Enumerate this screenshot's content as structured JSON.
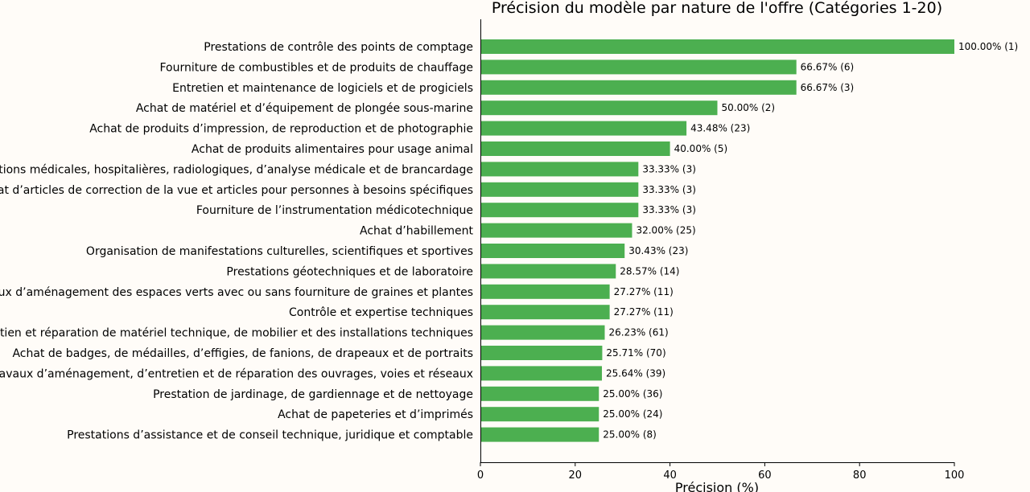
{
  "chart_data": {
    "type": "bar",
    "orientation": "horizontal",
    "title": "Précision du modèle par nature de l'offre (Catégories 1-20)",
    "xlabel": "Précision (%)",
    "ylabel": "",
    "xlim": [
      0,
      100
    ],
    "xticks": [
      "0",
      "20",
      "40",
      "60",
      "80",
      "100"
    ],
    "bar_color": "#4caf50",
    "grid": false,
    "categories": [
      "Prestations de contrôle des points de comptage",
      "Fourniture de combustibles et de produits de chauffage",
      "Entretien et maintenance de logiciels et de progiciels",
      "Achat de matériel et d’équipement de plongée sous-marine",
      "Achat de produits d’impression, de reproduction et de photographie",
      "Achat de produits alimentaires pour usage animal",
      "Prestations médicales, hospitalières, radiologiques, d’analyse médicale et de brancardage",
      "Achat d’articles de correction de la vue et articles pour personnes à besoins spécifiques",
      "Fourniture de l’instrumentation médicotechnique",
      "Achat d’habillement",
      "Organisation de manifestations culturelles, scientifiques et sportives",
      "Prestations géotechniques et de laboratoire",
      "Travaux d’aménagement des espaces verts avec ou sans fourniture de graines et plantes",
      "Contrôle et expertise techniques",
      "Entretien et réparation de matériel technique, de mobilier et des installations techniques",
      "Achat de badges, de médailles, d’effigies, de fanions, de drapeaux et de portraits",
      "Travaux d’aménagement, d’entretien et de réparation des ouvrages, voies et réseaux",
      "Prestation de jardinage, de gardiennage et de nettoyage",
      "Achat de papeteries et d’imprimés",
      "Prestations d’assistance et de conseil technique, juridique et comptable"
    ],
    "values": [
      100.0,
      66.67,
      66.67,
      50.0,
      43.48,
      40.0,
      33.33,
      33.33,
      33.33,
      32.0,
      30.43,
      28.57,
      27.27,
      27.27,
      26.23,
      25.71,
      25.64,
      25.0,
      25.0,
      25.0
    ],
    "data_labels": [
      "100.00% (1)",
      "66.67% (6)",
      "66.67% (3)",
      "50.00% (2)",
      "43.48% (23)",
      "40.00% (5)",
      "33.33% (3)",
      "33.33% (3)",
      "33.33% (3)",
      "32.00% (25)",
      "30.43% (23)",
      "28.57% (14)",
      "27.27% (11)",
      "27.27% (11)",
      "26.23% (61)",
      "25.71% (70)",
      "25.64% (39)",
      "25.00% (36)",
      "25.00% (24)",
      "25.00% (8)"
    ]
  }
}
